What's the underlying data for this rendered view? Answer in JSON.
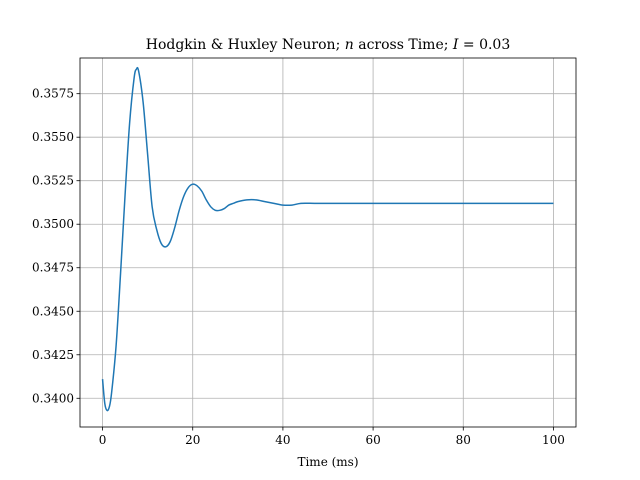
{
  "chart_data": {
    "type": "line",
    "title": "Hodgkin & Huxley Neuron; n across Time; I = 0.03",
    "title_parts": {
      "prefix": "Hodgkin & Huxley Neuron; ",
      "var_n": "n",
      "mid": " across Time; ",
      "var_I": "I",
      "suffix": " = 0.03"
    },
    "xlabel": "Time (ms)",
    "ylabel": "",
    "xlim": [
      -5,
      105
    ],
    "ylim": [
      0.33835,
      0.35955
    ],
    "xticks": [
      0,
      20,
      40,
      60,
      80,
      100
    ],
    "xtick_labels": [
      "0",
      "20",
      "40",
      "60",
      "80",
      "100"
    ],
    "yticks": [
      0.34,
      0.3425,
      0.345,
      0.3475,
      0.35,
      0.3525,
      0.355,
      0.3575
    ],
    "ytick_labels": [
      "0.3400",
      "0.3425",
      "0.3450",
      "0.3475",
      "0.3500",
      "0.3525",
      "0.3550",
      "0.3575"
    ],
    "grid": true,
    "line_color": "#1f77b4",
    "series": [
      {
        "x": [
          0,
          0.5,
          1,
          1.5,
          2,
          3,
          4,
          5,
          6,
          7,
          7.5,
          8,
          9,
          10,
          11,
          12,
          13,
          14,
          15,
          16,
          17,
          18,
          19,
          20,
          21,
          22,
          23,
          24,
          25,
          26,
          27,
          28,
          29,
          30,
          32,
          34,
          36,
          38,
          40,
          42,
          44,
          47,
          50,
          53,
          56,
          60,
          70,
          80,
          90,
          100
        ],
        "y": [
          0.3411,
          0.3397,
          0.3393,
          0.3395,
          0.3403,
          0.343,
          0.3472,
          0.3517,
          0.3558,
          0.3584,
          0.3589,
          0.3588,
          0.357,
          0.354,
          0.351,
          0.3497,
          0.3489,
          0.3487,
          0.349,
          0.3498,
          0.3508,
          0.3516,
          0.3521,
          0.3523,
          0.3522,
          0.3519,
          0.3514,
          0.351,
          0.3508,
          0.3508,
          0.3509,
          0.3511,
          0.3512,
          0.3513,
          0.3514,
          0.3514,
          0.3513,
          0.3512,
          0.3511,
          0.3511,
          0.3512,
          0.3512,
          0.3512,
          0.3512,
          0.3512,
          0.3512,
          0.3512,
          0.3512,
          0.3512,
          0.3512
        ]
      }
    ]
  }
}
